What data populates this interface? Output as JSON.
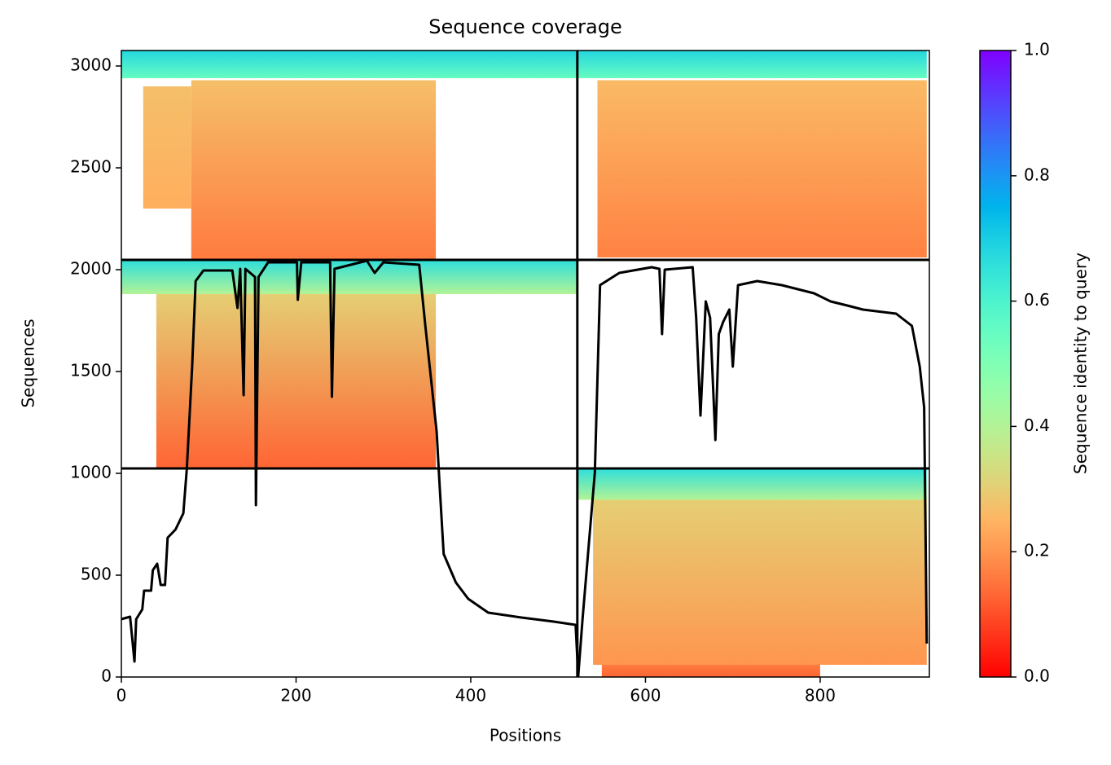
{
  "chart_data": {
    "type": "coverage",
    "title": "Sequence coverage",
    "xlabel": "Positions",
    "ylabel": "Sequences",
    "colorbar_label": "Sequence identity to query",
    "xlim": [
      0,
      925
    ],
    "ylim": [
      0,
      3076
    ],
    "xticks": [
      0,
      200,
      400,
      600,
      800
    ],
    "yticks": [
      0,
      500,
      1000,
      1500,
      2000,
      2500,
      3000
    ],
    "clim": [
      0,
      1
    ],
    "cticks": [
      {
        "value": 0,
        "label": "0.0"
      },
      0.2,
      0.4,
      0.6,
      0.8,
      {
        "value": 1,
        "label": "1.0"
      }
    ],
    "colormap": "rainbow_r",
    "chain_break": 522,
    "group_breaks": [
      1024,
      2048
    ],
    "blocks": [
      {
        "x": [
          0,
          522
        ],
        "y": [
          2940,
          3076
        ],
        "identity": [
          0.55,
          0.68
        ]
      },
      {
        "x": [
          25,
          80
        ],
        "y": [
          2300,
          2900
        ],
        "identity": [
          0.24,
          0.27
        ]
      },
      {
        "x": [
          80,
          360
        ],
        "y": [
          2048,
          2930
        ],
        "identity": [
          0.16,
          0.27
        ]
      },
      {
        "x": [
          522,
          922
        ],
        "y": [
          2940,
          3076
        ],
        "identity": [
          0.55,
          0.68
        ]
      },
      {
        "x": [
          545,
          922
        ],
        "y": [
          2060,
          2930
        ],
        "identity": [
          0.17,
          0.26
        ]
      },
      {
        "x": [
          0,
          522
        ],
        "y": [
          1880,
          2048
        ],
        "identity": [
          0.4,
          0.66
        ]
      },
      {
        "x": [
          40,
          360
        ],
        "y": [
          1024,
          1880
        ],
        "identity": [
          0.13,
          0.3
        ]
      },
      {
        "x": [
          522,
          922
        ],
        "y": [
          870,
          1024
        ],
        "identity": [
          0.4,
          0.66
        ]
      },
      {
        "x": [
          540,
          922
        ],
        "y": [
          60,
          870
        ],
        "identity": [
          0.2,
          0.3
        ]
      },
      {
        "x": [
          550,
          800
        ],
        "y": [
          0,
          60
        ],
        "identity": [
          0.13,
          0.16
        ]
      }
    ],
    "coverage": {
      "color": "#000000",
      "x": [
        0,
        10,
        15,
        17,
        24,
        26,
        34,
        36,
        41,
        45,
        50,
        53,
        62,
        71,
        75,
        81,
        85,
        94,
        127,
        133,
        136,
        140,
        142,
        153,
        154,
        157,
        168,
        201,
        202,
        206,
        239,
        241,
        244,
        281,
        290,
        300,
        341,
        348,
        355,
        361,
        364,
        369,
        383,
        397,
        420,
        458,
        495,
        520,
        523,
        528,
        542,
        548,
        570,
        607,
        616,
        619,
        622,
        654,
        658,
        663,
        669,
        674,
        680,
        684,
        689,
        696,
        700,
        706,
        728,
        756,
        793,
        812,
        831,
        849,
        887,
        905,
        914,
        919,
        922
      ],
      "values": [
        284,
        296,
        76,
        284,
        332,
        424,
        424,
        524,
        556,
        452,
        452,
        684,
        724,
        804,
        1024,
        1524,
        1944,
        1996,
        1996,
        1812,
        2004,
        1384,
        2004,
        1964,
        844,
        1964,
        2036,
        2036,
        1852,
        2036,
        2036,
        1376,
        2004,
        2044,
        1984,
        2036,
        2024,
        1724,
        1444,
        1204,
        964,
        604,
        464,
        384,
        316,
        292,
        272,
        256,
        4,
        284,
        1004,
        1924,
        1984,
        2012,
        2004,
        1684,
        2000,
        2012,
        1764,
        1284,
        1844,
        1764,
        1164,
        1684,
        1744,
        1804,
        1524,
        1924,
        1944,
        1924,
        1884,
        1844,
        1824,
        1804,
        1784,
        1724,
        1524,
        1324,
        164
      ]
    }
  }
}
